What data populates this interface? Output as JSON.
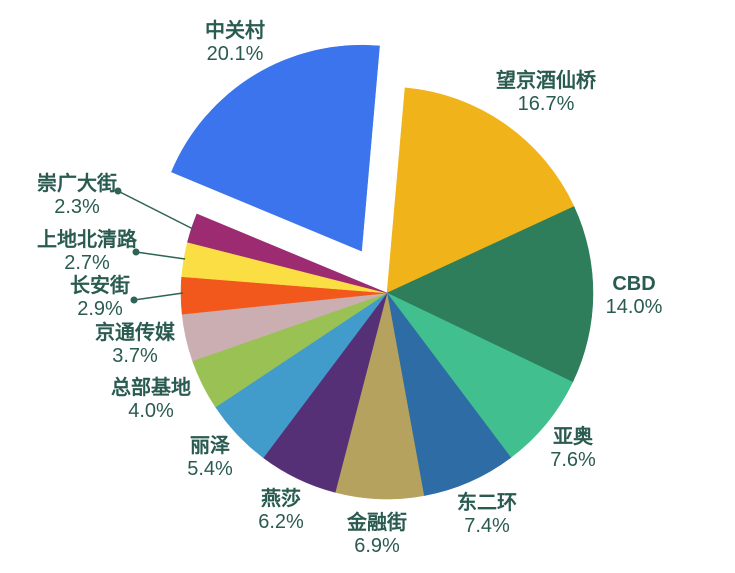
{
  "chart_data": {
    "type": "pie",
    "title": "",
    "unit": "%",
    "legend": "none",
    "clockwise": true,
    "start_angle_deg": 5,
    "exploded_slice": "中关村",
    "background_color": "#FFFFFF",
    "label_text_color": "#2A5B50",
    "leader_line_color": "#2E6357",
    "slices": [
      {
        "label": "中关村",
        "value": 20.1,
        "pct": "20.1%",
        "color": "#3B74EC",
        "exploded": true
      },
      {
        "label": "望京酒仙桥",
        "value": 16.7,
        "pct": "16.7%",
        "color": "#F0B41A",
        "exploded": false
      },
      {
        "label": "CBD",
        "value": 14.0,
        "pct": "14.0%",
        "color": "#2E7D5B",
        "exploded": false
      },
      {
        "label": "亚奥",
        "value": 7.6,
        "pct": "7.6%",
        "color": "#41BF8F",
        "exploded": false
      },
      {
        "label": "东二环",
        "value": 7.4,
        "pct": "7.4%",
        "color": "#2E6CA6",
        "exploded": false
      },
      {
        "label": "金融街",
        "value": 6.9,
        "pct": "6.9%",
        "color": "#B4A25E",
        "exploded": false
      },
      {
        "label": "燕莎",
        "value": 6.2,
        "pct": "6.2%",
        "color": "#553076",
        "exploded": false
      },
      {
        "label": "丽泽",
        "value": 5.4,
        "pct": "5.4%",
        "color": "#429CCB",
        "exploded": false
      },
      {
        "label": "总部基地",
        "value": 4.0,
        "pct": "4.0%",
        "color": "#9AC153",
        "exploded": false
      },
      {
        "label": "京通传媒",
        "value": 3.7,
        "pct": "3.7%",
        "color": "#CBAEB1",
        "exploded": false
      },
      {
        "label": "长安街",
        "value": 2.9,
        "pct": "2.9%",
        "color": "#F2581C",
        "exploded": false
      },
      {
        "label": "上地北清路",
        "value": 2.7,
        "pct": "2.7%",
        "color": "#FADE44",
        "exploded": false
      },
      {
        "label": "崇广大街",
        "value": 2.3,
        "pct": "2.3%",
        "color": "#9C2B72",
        "exploded": false
      }
    ]
  }
}
